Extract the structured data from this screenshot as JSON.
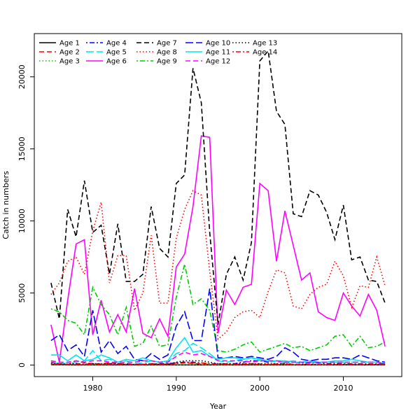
{
  "chart_data": {
    "type": "line",
    "title": "",
    "xlabel": "Year",
    "ylabel": "Catch in numbers",
    "xlim": [
      1973,
      2017
    ],
    "ylim": [
      -800,
      23000
    ],
    "x_ticks": [
      1980,
      1990,
      2000,
      2010
    ],
    "y_ticks": [
      0,
      5000,
      10000,
      15000,
      20000
    ],
    "grid": false,
    "legend_position": "top-left",
    "x": [
      1975,
      1976,
      1977,
      1978,
      1979,
      1980,
      1981,
      1982,
      1983,
      1984,
      1985,
      1986,
      1987,
      1988,
      1989,
      1990,
      1991,
      1992,
      1993,
      1994,
      1995,
      1996,
      1997,
      1998,
      1999,
      2000,
      2001,
      2002,
      2003,
      2004,
      2005,
      2006,
      2007,
      2008,
      2009,
      2010,
      2011,
      2012,
      2013,
      2014,
      2015
    ],
    "series": [
      {
        "name": "Age 1",
        "color": "#000000",
        "dash": "solid",
        "values": [
          30,
          20,
          10,
          10,
          10,
          10,
          10,
          10,
          10,
          10,
          10,
          10,
          10,
          10,
          10,
          10,
          10,
          10,
          10,
          10,
          10,
          10,
          10,
          10,
          10,
          10,
          10,
          10,
          10,
          10,
          10,
          10,
          10,
          10,
          10,
          10,
          10,
          10,
          10,
          10,
          10
        ]
      },
      {
        "name": "Age 2",
        "color": "#ff0000",
        "dash": "dashed",
        "values": [
          200,
          100,
          50,
          300,
          150,
          100,
          80,
          150,
          100,
          100,
          50,
          50,
          100,
          50,
          80,
          150,
          200,
          100,
          80,
          50,
          50,
          50,
          50,
          80,
          100,
          80,
          50,
          80,
          100,
          50,
          50,
          50,
          30,
          30,
          30,
          30,
          30,
          30,
          30,
          30,
          30
        ]
      },
      {
        "name": "Age 3",
        "color": "#00cd00",
        "dash": "dotted",
        "values": [
          50,
          20,
          20,
          30,
          20,
          20,
          20,
          30,
          20,
          20,
          20,
          20,
          20,
          20,
          20,
          20,
          20,
          20,
          20,
          20,
          20,
          20,
          20,
          20,
          20,
          20,
          20,
          20,
          20,
          20,
          20,
          20,
          20,
          20,
          20,
          20,
          20,
          20,
          20,
          20,
          20
        ]
      },
      {
        "name": "Age 4",
        "color": "#0000ff",
        "dash": "dashdot",
        "values": [
          100,
          50,
          50,
          100,
          50,
          100,
          50,
          100,
          100,
          50,
          50,
          50,
          50,
          100,
          100,
          150,
          200,
          200,
          150,
          100,
          100,
          80,
          100,
          200,
          300,
          300,
          200,
          300,
          200,
          200,
          150,
          150,
          150,
          100,
          100,
          100,
          80,
          80,
          80,
          80,
          80
        ]
      },
      {
        "name": "Age 5",
        "color": "#00e5ee",
        "dash": "longdash",
        "values": [
          100,
          150,
          100,
          200,
          300,
          1000,
          300,
          400,
          200,
          300,
          100,
          150,
          300,
          200,
          200,
          800,
          1000,
          1500,
          1200,
          800,
          300,
          200,
          300,
          400,
          500,
          300,
          300,
          200,
          200,
          300,
          200,
          300,
          200,
          200,
          200,
          200,
          200,
          200,
          200,
          200,
          150
        ]
      },
      {
        "name": "Age 6",
        "color": "#ff00ff",
        "dash": "solid",
        "values": [
          2800,
          200,
          4500,
          8400,
          8700,
          2100,
          4500,
          2300,
          3500,
          2300,
          5300,
          2200,
          1900,
          3200,
          2000,
          6800,
          7700,
          11000,
          15900,
          15800,
          2200,
          5200,
          4200,
          5400,
          5600,
          12600,
          12100,
          7200,
          10700,
          8300,
          5900,
          6400,
          3700,
          3300,
          3100,
          5000,
          4100,
          3400,
          4900,
          3800,
          1300
        ]
      },
      {
        "name": "Age 7",
        "color": "#000000",
        "dash": "dashed",
        "values": [
          5700,
          3200,
          10800,
          8900,
          12800,
          9200,
          9700,
          6300,
          9800,
          5800,
          5800,
          6300,
          11000,
          8100,
          7500,
          12600,
          13200,
          20600,
          18200,
          9200,
          2800,
          6300,
          7500,
          5900,
          8500,
          21100,
          21800,
          17600,
          16700,
          10500,
          10300,
          12100,
          11800,
          10600,
          8700,
          11100,
          7300,
          7500,
          5900,
          5800,
          4300
        ]
      },
      {
        "name": "Age 8",
        "color": "#ff0000",
        "dash": "dotted",
        "values": [
          4900,
          5700,
          7200,
          7500,
          6300,
          9300,
          11300,
          5700,
          7600,
          7600,
          3800,
          5000,
          9000,
          4300,
          4300,
          8800,
          10800,
          12100,
          11800,
          6500,
          1800,
          2300,
          3300,
          3700,
          3800,
          3300,
          5100,
          6600,
          6400,
          4100,
          3900,
          4900,
          5400,
          5600,
          7200,
          6200,
          4000,
          5500,
          5400,
          7500,
          5500
        ]
      },
      {
        "name": "Age 9",
        "color": "#00cd00",
        "dash": "dashdot",
        "values": [
          3900,
          3700,
          3100,
          2900,
          2100,
          5400,
          4200,
          3500,
          2100,
          4000,
          1300,
          1500,
          2700,
          1300,
          1400,
          4700,
          7000,
          4200,
          4600,
          3800,
          1000,
          900,
          1100,
          1400,
          1600,
          900,
          1100,
          1300,
          1500,
          1200,
          1300,
          1000,
          1200,
          1400,
          2000,
          2100,
          1300,
          2000,
          1200,
          1300,
          1600
        ]
      },
      {
        "name": "Age 10",
        "color": "#0000ff",
        "dash": "longdash",
        "values": [
          1700,
          2100,
          1000,
          1400,
          600,
          3800,
          900,
          1700,
          800,
          1300,
          400,
          300,
          800,
          400,
          700,
          2700,
          3700,
          1700,
          1700,
          5300,
          500,
          500,
          600,
          500,
          600,
          500,
          400,
          600,
          1200,
          900,
          400,
          300,
          400,
          400,
          500,
          500,
          400,
          700,
          500,
          300,
          200
        ]
      },
      {
        "name": "Age 11",
        "color": "#00e5ee",
        "dash": "solid",
        "values": [
          700,
          700,
          300,
          700,
          300,
          400,
          700,
          500,
          200,
          400,
          300,
          500,
          300,
          200,
          300,
          1200,
          1900,
          900,
          1000,
          600,
          400,
          500,
          500,
          400,
          500,
          400,
          300,
          300,
          300,
          200,
          200,
          200,
          200,
          200,
          300,
          300,
          400,
          300,
          200,
          200,
          150
        ]
      },
      {
        "name": "Age 12",
        "color": "#ff00ff",
        "dash": "dashed",
        "values": [
          300,
          200,
          200,
          300,
          200,
          300,
          300,
          200,
          200,
          200,
          200,
          300,
          300,
          200,
          200,
          600,
          900,
          700,
          800,
          600,
          300,
          300,
          300,
          300,
          200,
          300,
          300,
          300,
          200,
          200,
          200,
          200,
          200,
          200,
          200,
          200,
          200,
          200,
          200,
          200,
          100
        ]
      },
      {
        "name": "Age 13",
        "color": "#000000",
        "dash": "dotted",
        "values": [
          100,
          100,
          50,
          100,
          50,
          100,
          100,
          50,
          50,
          50,
          50,
          50,
          100,
          50,
          50,
          200,
          300,
          300,
          300,
          200,
          100,
          100,
          100,
          100,
          100,
          100,
          100,
          100,
          100,
          50,
          50,
          50,
          50,
          50,
          50,
          50,
          50,
          50,
          50,
          50,
          50
        ]
      },
      {
        "name": "Age 14",
        "color": "#ff0000",
        "dash": "dashdot",
        "values": [
          50,
          50,
          30,
          50,
          30,
          50,
          50,
          30,
          30,
          30,
          30,
          30,
          50,
          30,
          30,
          100,
          150,
          150,
          150,
          100,
          50,
          50,
          50,
          50,
          50,
          50,
          50,
          50,
          50,
          30,
          30,
          30,
          30,
          30,
          30,
          30,
          30,
          30,
          30,
          30,
          30
        ]
      }
    ]
  }
}
